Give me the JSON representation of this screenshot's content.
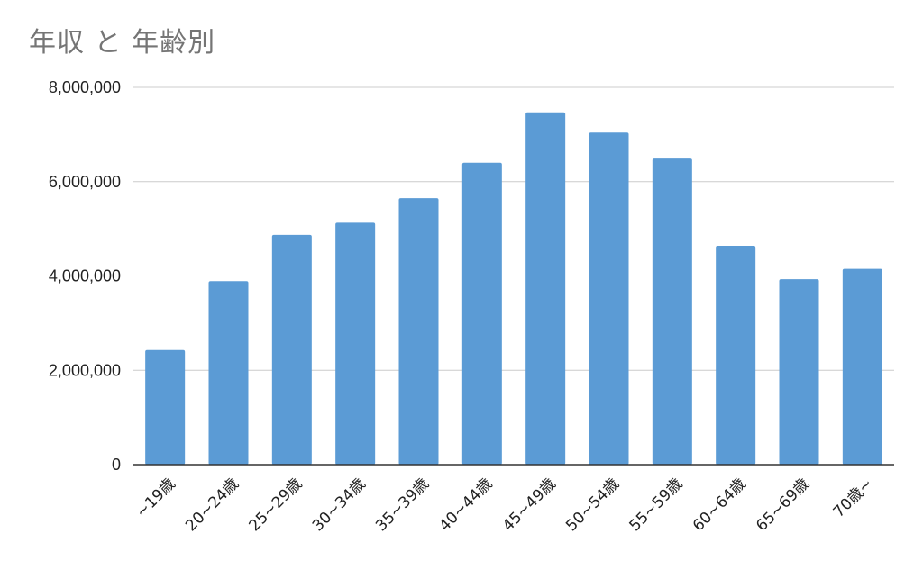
{
  "chart_data": {
    "type": "bar",
    "title": "年収 と 年齢別",
    "xlabel": "",
    "ylabel": "",
    "categories": [
      "~19歳",
      "20~24歳",
      "25~29歳",
      "30~34歳",
      "35~39歳",
      "40~44歳",
      "45~49歳",
      "50~54歳",
      "55~59歳",
      "60~64歳",
      "65~69歳",
      "70歳~"
    ],
    "values": [
      2430000,
      3890000,
      4870000,
      5130000,
      5650000,
      6400000,
      7470000,
      7040000,
      6490000,
      4640000,
      3930000,
      4150000
    ],
    "ylim": [
      0,
      8000000
    ],
    "yticks": [
      0,
      2000000,
      4000000,
      6000000,
      8000000
    ],
    "ytick_labels": [
      "0",
      "2,000,000",
      "4,000,000",
      "6,000,000",
      "8,000,000"
    ],
    "grid": true,
    "legend": "none",
    "bar_color": "#5b9bd5"
  }
}
